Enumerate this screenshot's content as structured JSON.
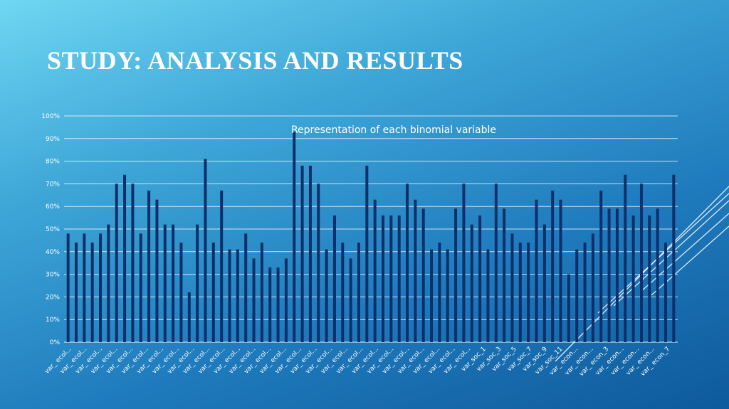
{
  "slide": {
    "title": "STUDY: ANALYSIS AND RESULTS"
  },
  "chart_data": {
    "type": "bar",
    "title": "Representation of each binomial variable",
    "xlabel": "",
    "ylabel": "",
    "ylim": [
      0,
      100
    ],
    "y_ticks": [
      "0%",
      "10%",
      "20%",
      "30%",
      "40%",
      "50%",
      "60%",
      "70%",
      "80%",
      "90%",
      "100%"
    ],
    "grid": true,
    "legend": "none",
    "bar_color": "#0d2f6b",
    "x_tick_labels": [
      "var_ ecol...",
      "var_ ecol...",
      "var_ ecol...",
      "var_ ecol...",
      "var_ ecol...",
      "var_ ecol...",
      "var_ ecol...",
      "var_ ecol...",
      "var_ ecol...",
      "var_ ecol...",
      "var_ ecol...",
      "var_ ecol...",
      "var_ ecol...",
      "var_ ecol...",
      "var_ ecol...",
      "var_ ecol...",
      "var_ ecol...",
      "var_ ecol...",
      "var_ ecol...",
      "var_ ecol...",
      "var_ ecol...",
      "var_ ecol...",
      "var_ ecol...",
      "var_ ecol...",
      "var_ ecol...",
      "var_ ecol...",
      "var_ ecol...",
      "var_soc_1",
      "var_soc_3",
      "var_soc_5",
      "var_soc_7",
      "var_soc_9",
      "var_soc_11",
      "var_ econ...",
      "var_ econ...",
      "var_ econ_3",
      "var_ econ...",
      "var_ econ...",
      "var_ econ...",
      "var_ econ_7"
    ],
    "values": [
      48,
      44,
      48,
      44,
      48,
      52,
      70,
      74,
      70,
      48,
      67,
      63,
      52,
      52,
      44,
      22,
      52,
      81,
      44,
      67,
      41,
      41,
      48,
      37,
      44,
      33,
      33,
      37,
      93,
      78,
      78,
      70,
      41,
      56,
      44,
      37,
      44,
      78,
      63,
      56,
      56,
      56,
      70,
      63,
      59,
      41,
      44,
      41,
      59,
      70,
      52,
      56,
      41,
      70,
      59,
      48,
      44,
      44,
      63,
      52,
      67,
      63,
      30,
      41,
      44,
      48,
      67,
      59,
      59,
      74,
      56,
      70,
      56,
      59,
      44,
      74
    ]
  }
}
